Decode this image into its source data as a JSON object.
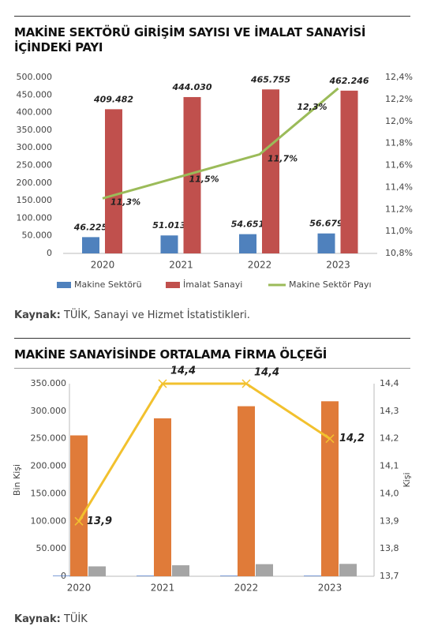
{
  "chart_data": [
    {
      "type": "bar",
      "title": "MAKİNE SEKTÖRÜ GİRİŞİM SAYISI VE İMALAT SANAYİSİ İÇİNDEKİ PAYI",
      "categories": [
        "2020",
        "2021",
        "2022",
        "2023"
      ],
      "series": [
        {
          "name": "Makine Sektörü",
          "color": "#4f81bd",
          "values": [
            46225,
            51013,
            54651,
            56679
          ],
          "value_labels": [
            "46.225",
            "51.013",
            "54.651",
            "56.679"
          ]
        },
        {
          "name": "İmalat Sanayi",
          "color": "#c0504d",
          "values": [
            409482,
            444030,
            465755,
            462246
          ],
          "value_labels": [
            "409.482",
            "444.030",
            "465.755",
            "462.246"
          ]
        },
        {
          "name": "Makine Sektör Payı",
          "type": "line",
          "axis": "y2",
          "color": "#9bbb59",
          "values": [
            11.3,
            11.5,
            11.7,
            12.3
          ],
          "value_labels": [
            "11,3%",
            "11,5%",
            "11,7%",
            "12,3%"
          ]
        }
      ],
      "ylim": [
        0,
        500000
      ],
      "yticks": [
        {
          "value": 0,
          "label": "0"
        },
        {
          "value": 50000,
          "label": "50.000"
        },
        {
          "value": 100000,
          "label": "100.000"
        },
        {
          "value": 150000,
          "label": "150.000"
        },
        {
          "value": 200000,
          "label": "200.000"
        },
        {
          "value": 250000,
          "label": "250.000"
        },
        {
          "value": 300000,
          "label": "300.000"
        },
        {
          "value": 350000,
          "label": "350.000"
        },
        {
          "value": 400000,
          "label": "400.000"
        },
        {
          "value": 450000,
          "label": "450.000"
        },
        {
          "value": 500000,
          "label": "500.000"
        }
      ],
      "y2lim": [
        10.8,
        12.4
      ],
      "y2ticks": [
        {
          "value": 10.8,
          "label": "10,8%"
        },
        {
          "value": 11.0,
          "label": "11,0%"
        },
        {
          "value": 11.2,
          "label": "11,2%"
        },
        {
          "value": 11.4,
          "label": "11,4%"
        },
        {
          "value": 11.6,
          "label": "11,6%"
        },
        {
          "value": 11.8,
          "label": "11,8%"
        },
        {
          "value": 12.0,
          "label": "12,0%"
        },
        {
          "value": 12.2,
          "label": "12,2%"
        },
        {
          "value": 12.4,
          "label": "12,4%"
        }
      ],
      "legend": "bottom",
      "source_label": "Kaynak:",
      "source": "TÜİK, Sanayi ve Hizmet İstatistikleri."
    },
    {
      "type": "bar",
      "title": "MAKİNE SANAYİSİNDE ORTALAMA FİRMA ÖLÇEĞİ",
      "categories": [
        "2020",
        "2021",
        "2022",
        "2023"
      ],
      "ylabel": "Bin Kişi",
      "y2label": "Kişi",
      "series": [
        {
          "color": "#4472c4",
          "values": [
            1000,
            1000,
            1000,
            1000
          ]
        },
        {
          "color": "#e07b39",
          "values": [
            256000,
            287000,
            309000,
            318000
          ]
        },
        {
          "color": "#a5a5a5",
          "values": [
            18000,
            20000,
            22000,
            22500
          ]
        },
        {
          "type": "line",
          "axis": "y2",
          "color": "#f2c12e",
          "values": [
            13.9,
            14.4,
            14.4,
            14.2
          ],
          "value_labels": [
            "13,9",
            "14,4",
            "14,4",
            "14,2"
          ]
        }
      ],
      "ylim": [
        0,
        350000
      ],
      "yticks": [
        {
          "value": 0,
          "label": "0"
        },
        {
          "value": 50000,
          "label": "50.000"
        },
        {
          "value": 100000,
          "label": "100.000"
        },
        {
          "value": 150000,
          "label": "150.000"
        },
        {
          "value": 200000,
          "label": "200.000"
        },
        {
          "value": 250000,
          "label": "250.000"
        },
        {
          "value": 300000,
          "label": "300.000"
        },
        {
          "value": 350000,
          "label": "350.000"
        }
      ],
      "y2lim": [
        13.7,
        14.4
      ],
      "y2ticks": [
        {
          "value": 13.7,
          "label": "13,7"
        },
        {
          "value": 13.8,
          "label": "13,8"
        },
        {
          "value": 13.9,
          "label": "13,9"
        },
        {
          "value": 14.0,
          "label": "14,0"
        },
        {
          "value": 14.1,
          "label": "14,1"
        },
        {
          "value": 14.2,
          "label": "14,2"
        },
        {
          "value": 14.3,
          "label": "14,3"
        },
        {
          "value": 14.4,
          "label": "14,4"
        }
      ],
      "source_label": "Kaynak:",
      "source": "TÜİK"
    }
  ]
}
